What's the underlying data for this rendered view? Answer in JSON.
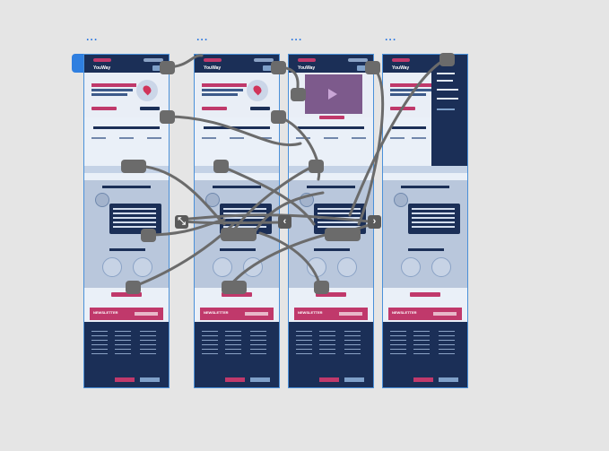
{
  "canvas": {
    "background": "#e5e5e5"
  },
  "frames": [
    {
      "label": "...",
      "logo": "YouWay",
      "nav": "Nos Offres"
    },
    {
      "label": "...",
      "logo": "YouWay",
      "nav": "Nos Offres"
    },
    {
      "label": "...",
      "logo": "YouWay",
      "nav": "Nos Offres"
    },
    {
      "label": "...",
      "logo": "YouWay",
      "nav": "Nos Offres"
    }
  ],
  "newsletter": {
    "label": "NEWSLETTER"
  },
  "controls": {
    "collapse_icon": "collapse-icon",
    "prev_icon": "chevron-left-icon",
    "next_icon": "chevron-right-icon"
  },
  "colors": {
    "navy": "#1b2f57",
    "magenta": "#c0396b",
    "selection": "#4a90d9",
    "connector": "#6b6b6b"
  }
}
